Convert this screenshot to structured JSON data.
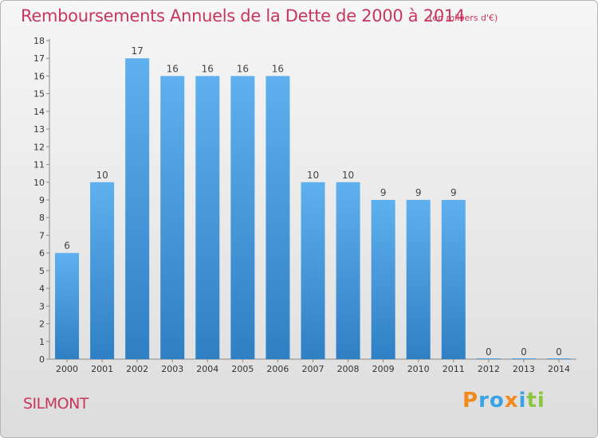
{
  "chart_data": {
    "type": "bar",
    "title": "Remboursements Annuels de la Dette de 2000 à 2014",
    "subtitle": "(en milliers d'€)",
    "categories": [
      "2000",
      "2001",
      "2002",
      "2003",
      "2004",
      "2005",
      "2006",
      "2007",
      "2008",
      "2009",
      "2010",
      "2011",
      "2012",
      "2013",
      "2014"
    ],
    "values": [
      6,
      10,
      17,
      16,
      16,
      16,
      16,
      10,
      10,
      9,
      9,
      9,
      0,
      0,
      0
    ],
    "ylim": [
      0,
      18
    ],
    "yticks": [
      "0",
      "1",
      "2",
      "3",
      "4",
      "5",
      "6",
      "7",
      "8",
      "9",
      "10",
      "11",
      "12",
      "13",
      "14",
      "15",
      "16",
      "17",
      "18"
    ],
    "grid": false,
    "bar_color": "#4a9fe0"
  },
  "footer": {
    "town": "SILMONT",
    "logo_letters": [
      "P",
      "r",
      "o",
      "x",
      "i",
      "t",
      "i"
    ],
    "logo_colors": [
      "#f08a1c",
      "#3aa3e3",
      "#3aa3e3",
      "#f08a1c",
      "#3aa3e3",
      "#8cc63f",
      "#8cc63f"
    ]
  }
}
